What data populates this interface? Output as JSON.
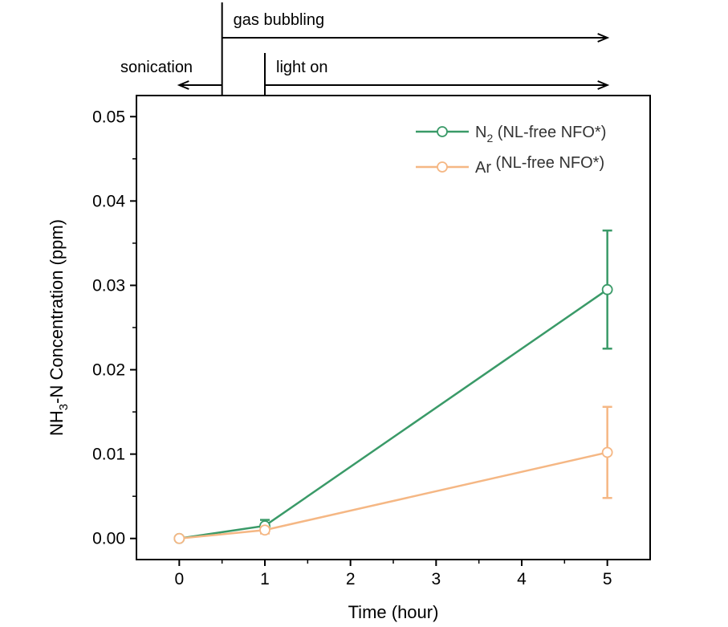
{
  "chart_data": {
    "type": "line",
    "xlabel": "Time (hour)",
    "ylabel": {
      "prefix": "NH",
      "subscript": "3",
      "suffix": "-N Concentration (ppm)"
    },
    "xlim": [
      -0.5,
      5.5
    ],
    "ylim": [
      -0.0025,
      0.0525
    ],
    "x_ticks": [
      0,
      1,
      2,
      3,
      4,
      5
    ],
    "x_tick_labels": [
      "0",
      "1",
      "2",
      "3",
      "4",
      "5"
    ],
    "y_ticks": [
      0.0,
      0.01,
      0.02,
      0.03,
      0.04,
      0.05
    ],
    "y_tick_labels": [
      "0.00",
      "0.01",
      "0.02",
      "0.03",
      "0.04",
      "0.05"
    ],
    "grid": false,
    "legend_position": "top-right",
    "series": [
      {
        "name": "N2 (NL-free NFO*)",
        "legend": {
          "prefix": "N",
          "subscript": "2",
          "suffix": " (NL-free NFO*)"
        },
        "color": "#3a9a68",
        "marker": "open-circle",
        "x": [
          0,
          1,
          5
        ],
        "y": [
          0.0,
          0.0015,
          0.0295
        ],
        "err": [
          0.0,
          0.0007,
          0.007
        ]
      },
      {
        "name": "Ar (NL-free NFO*)",
        "legend": {
          "prefix": "Ar",
          "subscript": "",
          "suffix": " (NL-free NFO*)"
        },
        "color": "#f5b784",
        "marker": "open-circle",
        "x": [
          0,
          1,
          5
        ],
        "y": [
          0.0,
          0.001,
          0.0102
        ],
        "err": [
          0.0,
          0.0004,
          0.0054
        ]
      }
    ],
    "annotations": {
      "gas_bubbling": {
        "label": "gas bubbling",
        "start_x": 0.5,
        "end_x": 5,
        "direction": "right"
      },
      "light_on": {
        "label": "light on",
        "start_x": 1,
        "end_x": 5,
        "direction": "right"
      },
      "sonication": {
        "label": "sonication",
        "start_x": 0.5,
        "end_x": 0,
        "direction": "left"
      }
    }
  }
}
